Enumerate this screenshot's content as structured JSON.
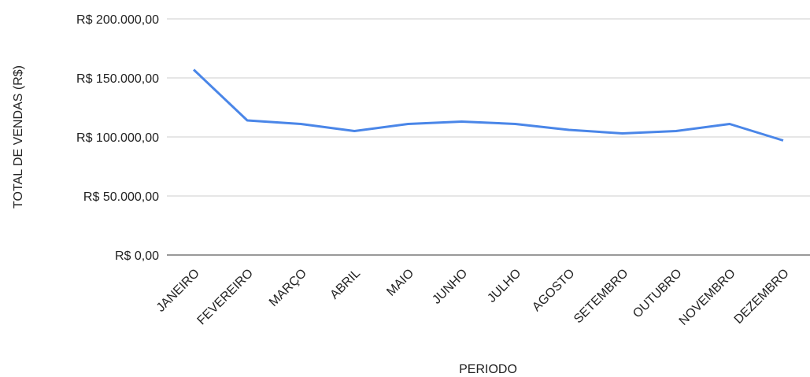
{
  "chart_data": {
    "type": "line",
    "x_label": "PERIODO",
    "y_label": "TOTAL DE VENDAS (R$)",
    "categories": [
      "JANEIRO",
      "FEVEREIRO",
      "MARÇO",
      "ABRIL",
      "MAIO",
      "JUNHO",
      "JULHO",
      "AGOSTO",
      "SETEMBRO",
      "OUTUBRO",
      "NOVEMBRO",
      "DEZEMBRO"
    ],
    "series": [
      {
        "color": "#4a86e8",
        "values": [
          157000,
          114000,
          111000,
          105000,
          111000,
          113000,
          111000,
          106000,
          103000,
          105000,
          111000,
          97000
        ]
      }
    ],
    "ylim": [
      0,
      200000
    ],
    "yticks": [
      {
        "value": 0,
        "label": "R$ 0,00"
      },
      {
        "value": 50000,
        "label": "R$ 50.000,00"
      },
      {
        "value": 100000,
        "label": "R$ 100.000,00"
      },
      {
        "value": 150000,
        "label": "R$ 150.000,00"
      },
      {
        "value": 200000,
        "label": "R$ 200.000,00"
      }
    ],
    "grid": true
  }
}
